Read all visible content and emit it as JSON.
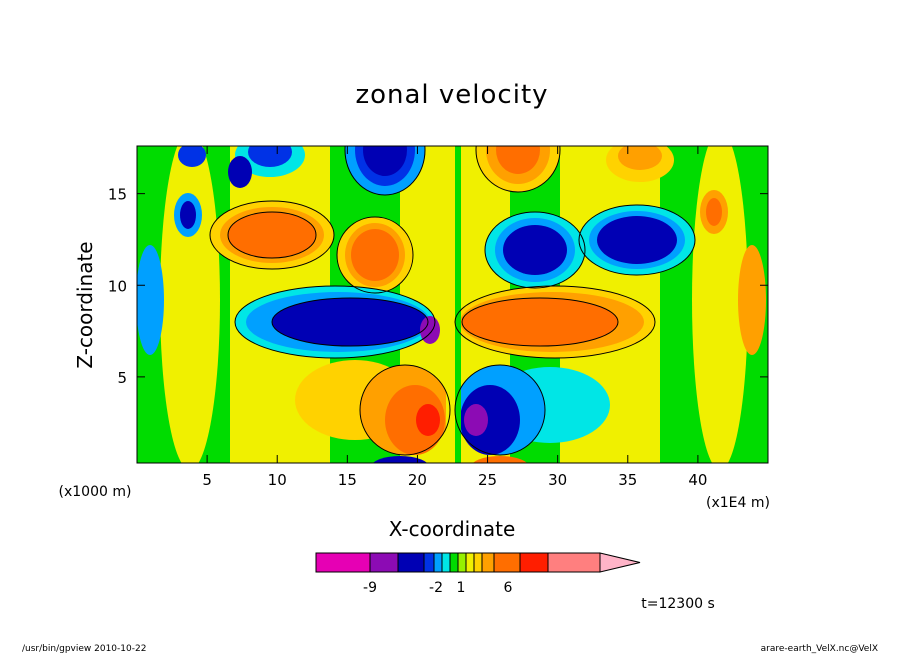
{
  "chart_data": {
    "type": "heatmap",
    "title": "zonal velocity",
    "xlabel": "X-coordinate",
    "ylabel": "Z-coordinate",
    "x_unit": "(x1E4 m)",
    "y_unit": "(x1000 m)",
    "xlim": [
      0,
      45
    ],
    "ylim": [
      0.3,
      17.6
    ],
    "x_ticks": [
      5,
      10,
      15,
      20,
      25,
      30,
      35,
      40
    ],
    "y_ticks": [
      5,
      10,
      15
    ],
    "colorbar": {
      "levels": [
        "-9",
        "-2",
        "1",
        "6"
      ],
      "colors": [
        "#e600b4",
        "#8c0bb4",
        "#0000b4",
        "#0032e6",
        "#00a0ff",
        "#00e6e6",
        "#00dc00",
        "#96f000",
        "#f0f000",
        "#ffd200",
        "#ffa000",
        "#ff6e00",
        "#ff1e00",
        "#ff7f7f",
        "#ffb4c8"
      ]
    },
    "time_label": "t=12300 s",
    "footer_left": "/usr/bin/gpview   2010-10-22",
    "footer_right": "arare-earth_VelX.nc@VelX",
    "features": [
      {
        "x": 11.5,
        "z": 13.5,
        "value": 5
      },
      {
        "x": 17.5,
        "z": 12.5,
        "value": 5
      },
      {
        "x": 28.5,
        "z": 12.0,
        "value": -6
      },
      {
        "x": 36.5,
        "z": 13.0,
        "value": -6
      },
      {
        "x": 16.5,
        "z": 8.0,
        "value": -8
      },
      {
        "x": 30.0,
        "z": 8.0,
        "value": 6
      },
      {
        "x": 20.5,
        "z": 3.0,
        "value": 6
      },
      {
        "x": 25.0,
        "z": 3.0,
        "value": -7
      },
      {
        "x": 18.5,
        "z": 16.5,
        "value": -5
      },
      {
        "x": 27.5,
        "z": 16.5,
        "value": 5
      },
      {
        "x": 4.0,
        "z": 14.0,
        "value": -5
      },
      {
        "x": 41.5,
        "z": 14.0,
        "value": 5
      }
    ]
  }
}
